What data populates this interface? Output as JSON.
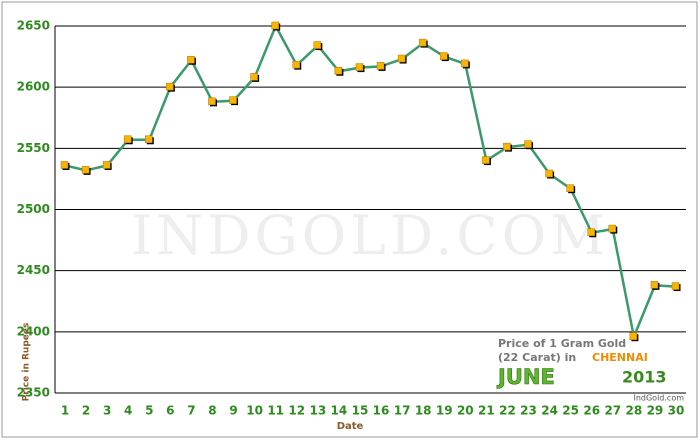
{
  "chart_data": {
    "type": "line",
    "x_label": "Date",
    "y_label": "Price in Rupees",
    "watermark": "IndGold.com",
    "source": "IndGold.com",
    "annotations": [
      "Price of 1 Gram Gold",
      "(22 Carat) in",
      "CHENNAI",
      "JUNE",
      "2013"
    ],
    "categories": [
      "1",
      "2",
      "3",
      "4",
      "5",
      "6",
      "7",
      "8",
      "9",
      "10",
      "11",
      "12",
      "13",
      "14",
      "15",
      "16",
      "17",
      "18",
      "19",
      "20",
      "21",
      "22",
      "23",
      "24",
      "25",
      "26",
      "27",
      "28",
      "29",
      "30"
    ],
    "series": [
      {
        "color": "#3a9a6a",
        "marker_color": "#f7b500",
        "values": [
          2536,
          2532,
          2536,
          2557,
          2557,
          2600,
          2622,
          2588,
          2589,
          2608,
          2650,
          2618,
          2634,
          2613,
          2616,
          2617,
          2623,
          2636,
          2625,
          2619,
          2540,
          2551,
          2553,
          2529,
          2517,
          2481,
          2484,
          2396,
          2438,
          2437
        ]
      }
    ],
    "ylim": [
      2350,
      2650
    ],
    "yticks": [
      2350,
      2400,
      2450,
      2500,
      2550,
      2600,
      2650
    ],
    "grid": true
  }
}
